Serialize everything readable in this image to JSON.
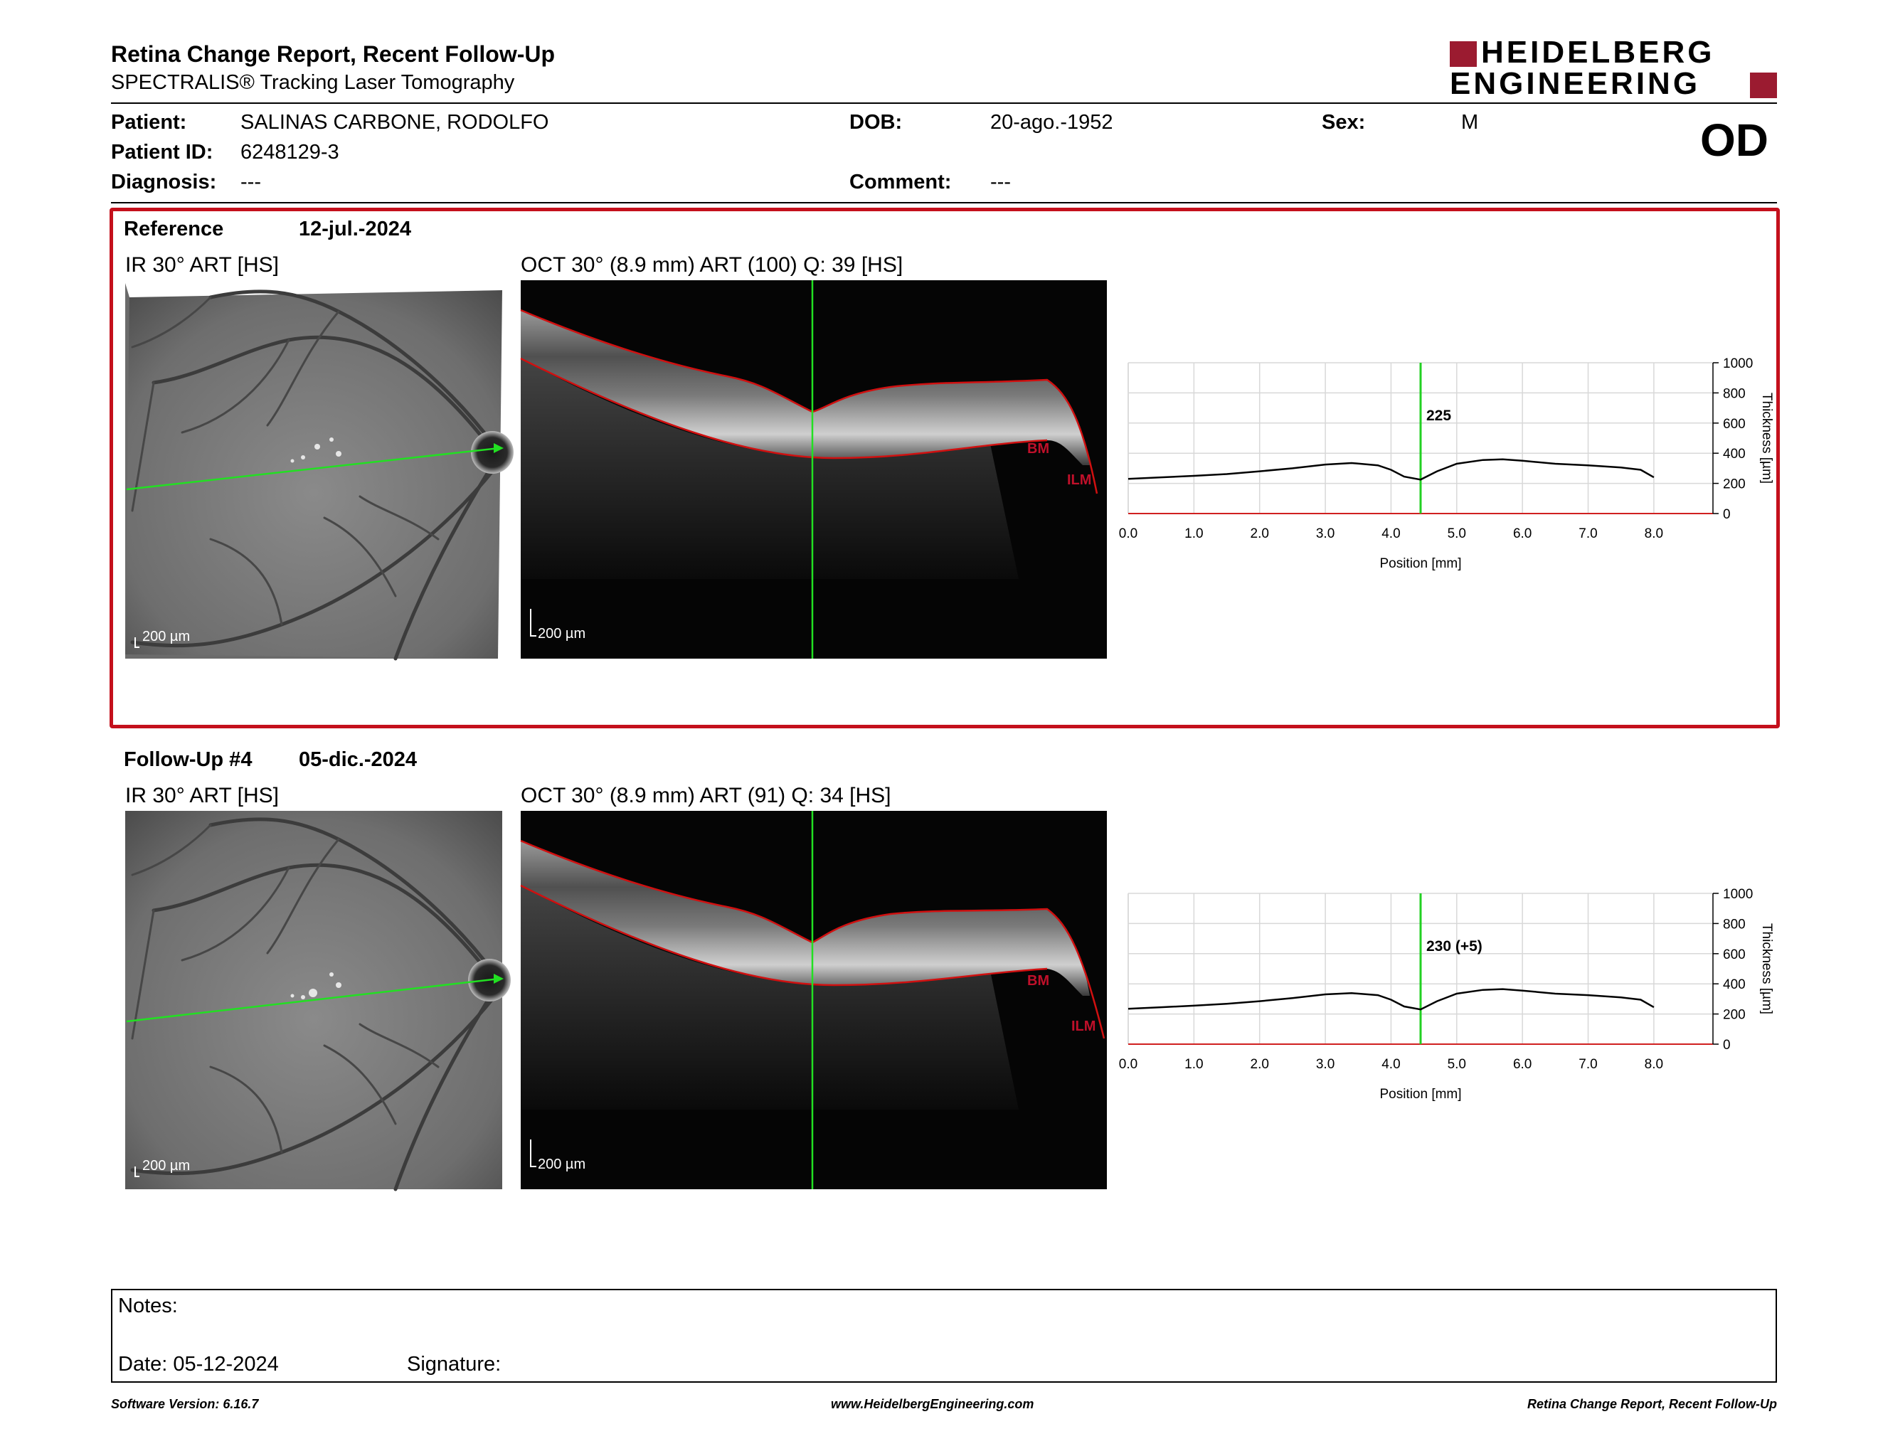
{
  "header": {
    "title": "Retina Change Report, Recent Follow-Up",
    "subtitle": "SPECTRALIS® Tracking Laser Tomography",
    "logo_line1": "HEIDELBERG",
    "logo_line2": "ENGINEERING",
    "brand_color": "#9b1b30"
  },
  "patient": {
    "patient_label": "Patient:",
    "patient_name": "SALINAS CARBONE, RODOLFO",
    "id_label": "Patient ID:",
    "patient_id": "6248129-3",
    "diagnosis_label": "Diagnosis:",
    "diagnosis": "---",
    "dob_label": "DOB:",
    "dob": "20-ago.-1952",
    "comment_label": "Comment:",
    "comment": "---",
    "sex_label": "Sex:",
    "sex": "M",
    "eye": "OD"
  },
  "reference": {
    "label": "Reference",
    "date": "12-jul.-2024",
    "ir_label": "IR 30° ART [HS]",
    "oct_label": "OCT 30° (8.9 mm) ART (100) Q: 39 [HS]",
    "scale_label": "200 µm",
    "bm_label": "BM",
    "ilm_label": "ILM"
  },
  "followup": {
    "label": "Follow-Up #4",
    "date": "05-dic.-2024",
    "ir_label": "IR 30° ART [HS]",
    "oct_label": "OCT 30° (8.9 mm) ART (91) Q: 34 [HS]",
    "scale_label": "200 µm",
    "bm_label": "BM",
    "ilm_label": "ILM"
  },
  "chart_data": [
    {
      "type": "line",
      "ylabel": "Thickness [µm]",
      "xlabel": "Position [mm]",
      "xlim": [
        0,
        8.9
      ],
      "ylim": [
        0,
        1000
      ],
      "x_ticks": [
        "0.0",
        "1.0",
        "2.0",
        "3.0",
        "4.0",
        "5.0",
        "6.0",
        "7.0",
        "8.0"
      ],
      "y_ticks": [
        "0",
        "200",
        "400",
        "600",
        "800",
        "1000"
      ],
      "cursor_x": 4.45,
      "cursor_label": "225",
      "grid": true,
      "x": [
        0.0,
        0.5,
        1.0,
        1.5,
        2.0,
        2.5,
        3.0,
        3.4,
        3.8,
        4.0,
        4.2,
        4.45,
        4.7,
        5.0,
        5.4,
        5.7,
        6.0,
        6.5,
        7.0,
        7.5,
        7.8,
        8.0
      ],
      "values": [
        230,
        240,
        250,
        262,
        280,
        300,
        325,
        335,
        320,
        290,
        245,
        225,
        280,
        330,
        355,
        360,
        350,
        330,
        320,
        305,
        290,
        240
      ]
    },
    {
      "type": "line",
      "ylabel": "Thickness [µm]",
      "xlabel": "Position [mm]",
      "xlim": [
        0,
        8.9
      ],
      "ylim": [
        0,
        1000
      ],
      "x_ticks": [
        "0.0",
        "1.0",
        "2.0",
        "3.0",
        "4.0",
        "5.0",
        "6.0",
        "7.0",
        "8.0"
      ],
      "y_ticks": [
        "0",
        "200",
        "400",
        "600",
        "800",
        "1000"
      ],
      "cursor_x": 4.45,
      "cursor_label": "230 (+5)",
      "grid": true,
      "x": [
        0.0,
        0.5,
        1.0,
        1.5,
        2.0,
        2.5,
        3.0,
        3.4,
        3.8,
        4.0,
        4.2,
        4.45,
        4.7,
        5.0,
        5.4,
        5.7,
        6.0,
        6.5,
        7.0,
        7.5,
        7.8,
        8.0
      ],
      "values": [
        235,
        245,
        255,
        268,
        285,
        305,
        330,
        338,
        325,
        295,
        250,
        230,
        285,
        335,
        360,
        365,
        355,
        335,
        325,
        310,
        295,
        245
      ]
    }
  ],
  "notes": {
    "notes_label": "Notes:",
    "date_label": "Date: 05-12-2024",
    "signature_label": "Signature:"
  },
  "footer": {
    "software": "Software Version: 6.16.7",
    "website": "www.HeidelbergEngineering.com",
    "report_name": "Retina Change Report, Recent Follow-Up"
  }
}
